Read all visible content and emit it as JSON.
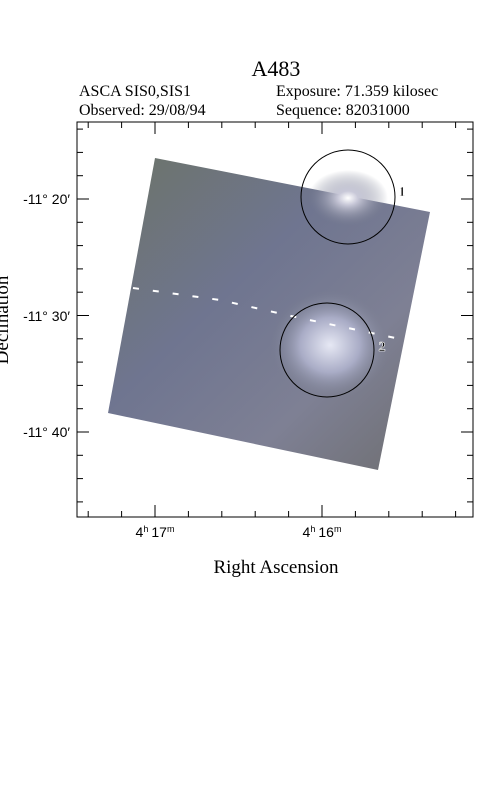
{
  "header": {
    "title": "A483",
    "instrument": "ASCA SIS0,SIS1",
    "exposure": "Exposure: 71.359 kilosec",
    "observed": "Observed: 29/08/94",
    "sequence": "Sequence: 82031000"
  },
  "axes": {
    "y_label": "Declination",
    "x_label": "Right Ascension",
    "y_ticks": [
      "-11° 20′",
      "-11° 30′",
      "-11° 40′"
    ],
    "x_ticks": [
      [
        "4",
        "h",
        "17",
        "m"
      ],
      [
        "4",
        "h",
        "16",
        "m"
      ]
    ]
  },
  "regions": [
    {
      "label": "1"
    },
    {
      "label": "2"
    }
  ]
}
